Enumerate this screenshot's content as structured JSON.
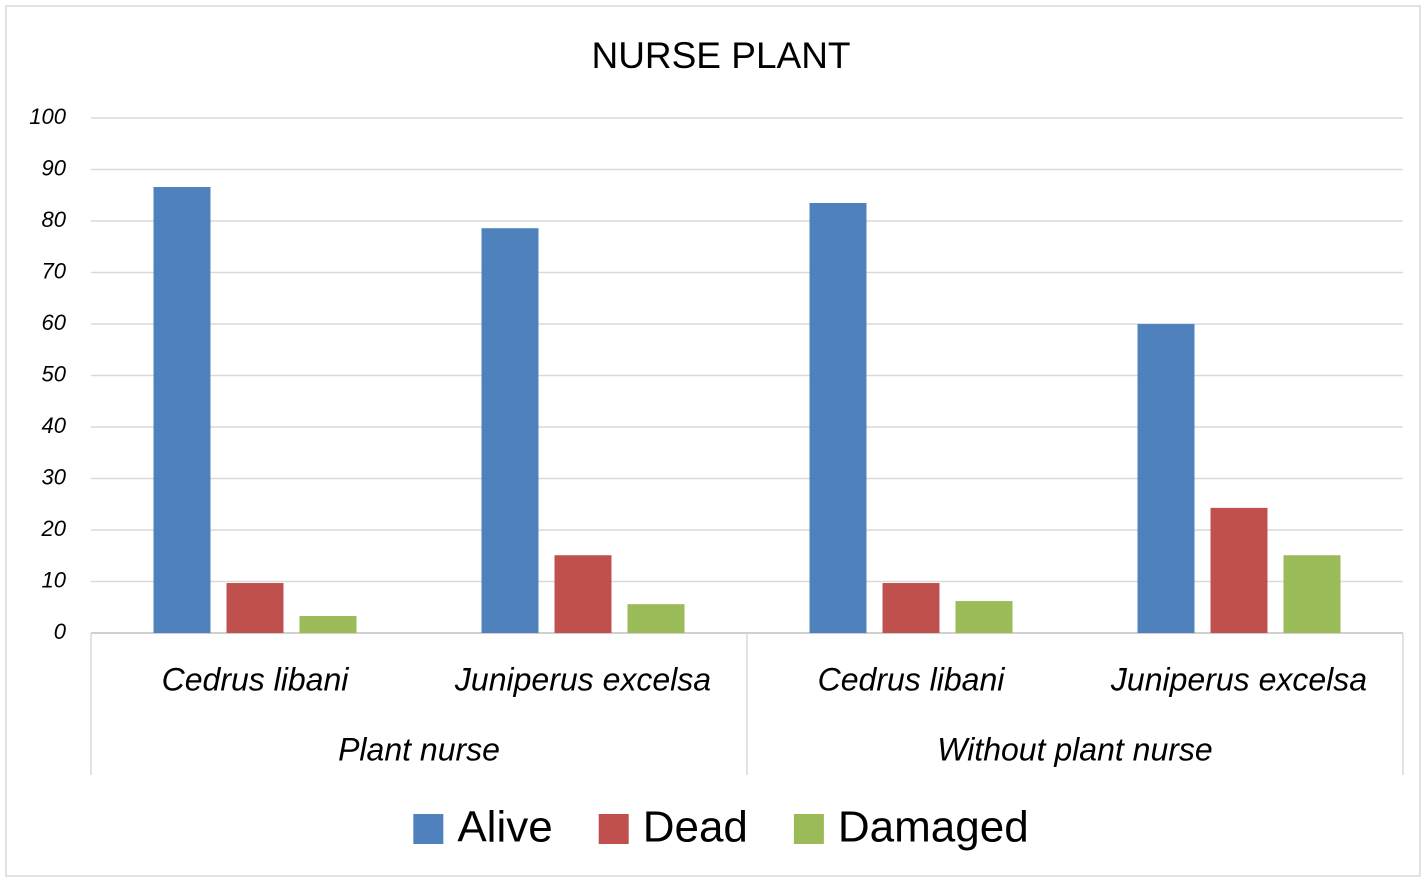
{
  "chart_data": {
    "type": "bar",
    "title": "NURSE PLANT",
    "categories": [
      "Cedrus libani",
      "Juniperus excelsa",
      "Cedrus libani",
      "Juniperus excelsa"
    ],
    "groups": [
      "Plant nurse",
      "Without plant nurse"
    ],
    "series": [
      {
        "name": "Alive",
        "color": "#4f81bd",
        "values": [
          86.6,
          78.6,
          83.5,
          60
        ]
      },
      {
        "name": "Dead",
        "color": "#c0504d",
        "values": [
          9.7,
          15.1,
          9.7,
          24.3
        ]
      },
      {
        "name": "Damaged",
        "color": "#9bbb59",
        "values": [
          3.3,
          5.6,
          6.2,
          15.1
        ]
      }
    ],
    "ylim": [
      0,
      100
    ],
    "yticks": [
      0,
      10,
      20,
      30,
      40,
      50,
      60,
      70,
      80,
      90,
      100
    ],
    "grid": true,
    "legend": "bottom"
  }
}
